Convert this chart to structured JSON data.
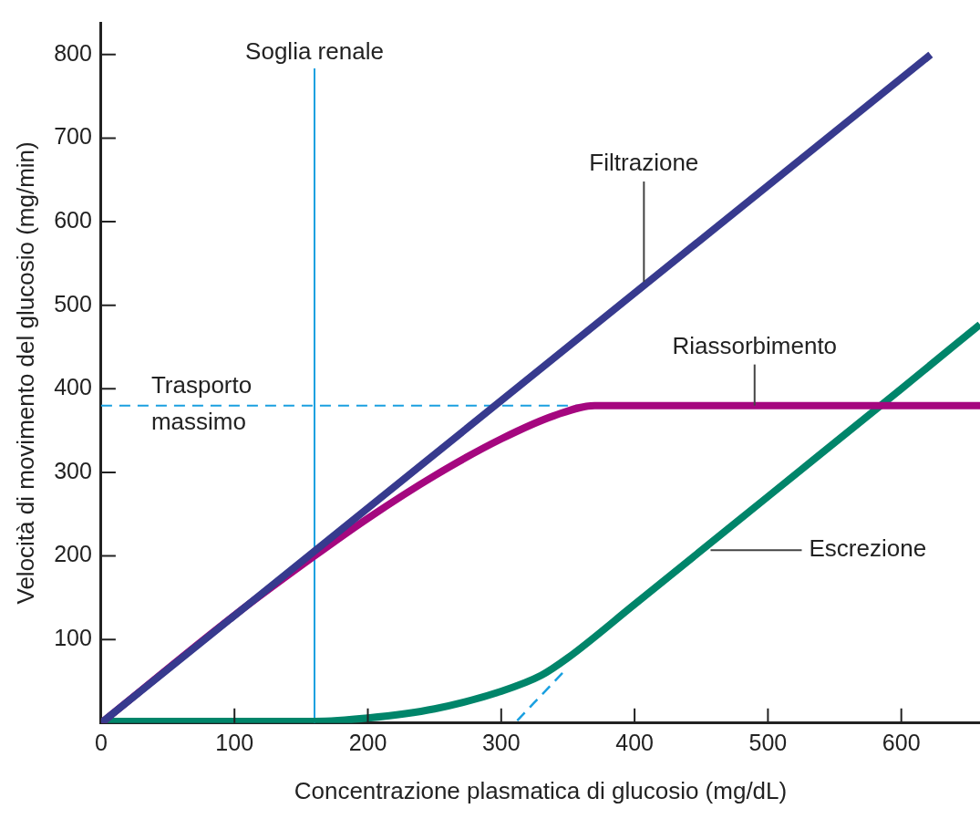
{
  "chart_data": {
    "type": "line",
    "xlabel": "Concentrazione plasmatica di glucosio (mg/dL)",
    "ylabel": "Velocità di movimento del glucosio (mg/min)",
    "xlim": [
      0,
      659
    ],
    "ylim": [
      0,
      838
    ],
    "xticks": [
      0,
      100,
      200,
      300,
      400,
      500,
      600
    ],
    "yticks": [
      100,
      200,
      300,
      400,
      500,
      600,
      700,
      800
    ],
    "grid": false,
    "legend": false,
    "marker": "none",
    "series": [
      {
        "color": "#373a8e",
        "x": [
          0,
          622
        ],
        "values": [
          0,
          800
        ]
      },
      {
        "color": "#a5077f",
        "x": [
          0,
          100,
          160,
          200,
          250,
          300,
          340,
          370,
          659
        ],
        "values": [
          0,
          129,
          200,
          245,
          296,
          340,
          368,
          380,
          380
        ]
      },
      {
        "color": "#00856a",
        "x": [
          0,
          160,
          200,
          250,
          300,
          330,
          350,
          400,
          500,
          600,
          659
        ],
        "values": [
          2,
          2,
          6,
          17,
          38,
          57,
          78,
          142,
          271,
          400,
          477
        ]
      },
      {
        "color": "#1aa0e0",
        "line_style": "dashed",
        "x": [
          312,
          346
        ],
        "values": [
          3,
          60
        ]
      }
    ],
    "ref_lines": [
      {
        "axis": "x",
        "value": 160,
        "label": "Soglia renale",
        "color": "#1aa0e0"
      },
      {
        "axis": "y",
        "value": 380,
        "label": "Trasporto massimo",
        "color": "#1aa0e0",
        "line_style": "dashed"
      }
    ],
    "annotations": [
      {
        "text": "Filtrazione",
        "x": 407,
        "y": 528
      },
      {
        "text": "Riassorbimento",
        "x": 490,
        "y": 380
      },
      {
        "text": "Escrezione",
        "x": 457,
        "y": 207
      }
    ]
  }
}
